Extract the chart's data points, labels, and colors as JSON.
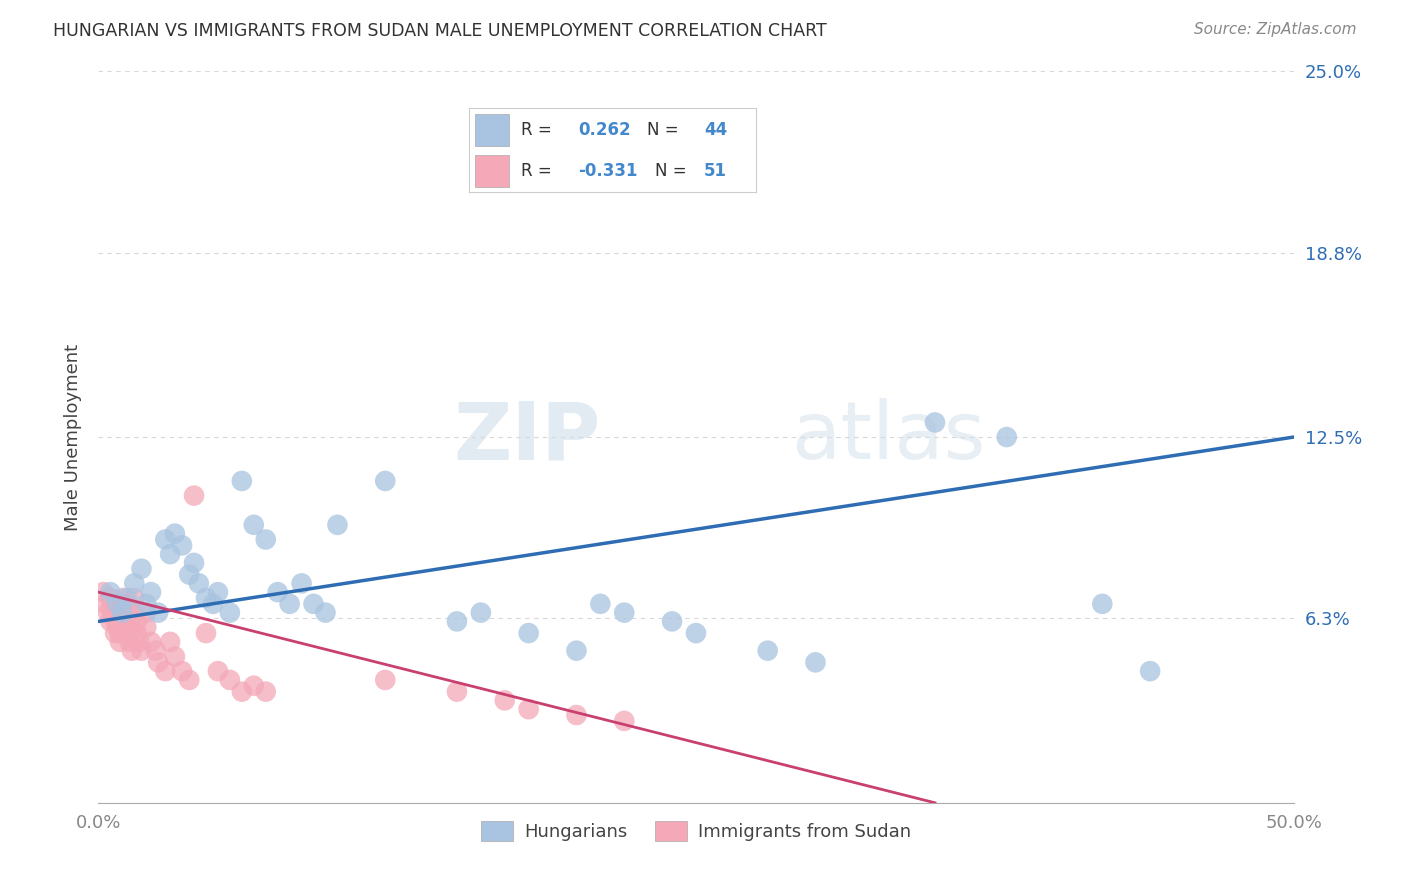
{
  "title": "HUNGARIAN VS IMMIGRANTS FROM SUDAN MALE UNEMPLOYMENT CORRELATION CHART",
  "source": "Source: ZipAtlas.com",
  "ylabel": "Male Unemployment",
  "xlim": [
    0.0,
    0.5
  ],
  "ylim": [
    0.0,
    0.25
  ],
  "yticks": [
    0.0,
    0.063,
    0.125,
    0.188,
    0.25
  ],
  "ytick_labels_right": [
    "",
    "6.3%",
    "12.5%",
    "18.8%",
    "25.0%"
  ],
  "xticks": [
    0.0,
    0.1,
    0.2,
    0.3,
    0.4,
    0.5
  ],
  "xtick_labels": [
    "0.0%",
    "",
    "",
    "",
    "",
    "50.0%"
  ],
  "blue_color": "#a8c4e0",
  "pink_color": "#f4a8b8",
  "blue_line_color": "#2e6db4",
  "pink_line_color": "#c94070",
  "legend_r_color": "#4488cc",
  "blue_scatter": [
    [
      0.005,
      0.072
    ],
    [
      0.008,
      0.068
    ],
    [
      0.01,
      0.065
    ],
    [
      0.012,
      0.07
    ],
    [
      0.015,
      0.075
    ],
    [
      0.018,
      0.08
    ],
    [
      0.02,
      0.068
    ],
    [
      0.022,
      0.072
    ],
    [
      0.025,
      0.065
    ],
    [
      0.028,
      0.09
    ],
    [
      0.03,
      0.085
    ],
    [
      0.032,
      0.092
    ],
    [
      0.035,
      0.088
    ],
    [
      0.038,
      0.078
    ],
    [
      0.04,
      0.082
    ],
    [
      0.042,
      0.075
    ],
    [
      0.045,
      0.07
    ],
    [
      0.048,
      0.068
    ],
    [
      0.05,
      0.072
    ],
    [
      0.055,
      0.065
    ],
    [
      0.06,
      0.11
    ],
    [
      0.065,
      0.095
    ],
    [
      0.07,
      0.09
    ],
    [
      0.075,
      0.072
    ],
    [
      0.08,
      0.068
    ],
    [
      0.085,
      0.075
    ],
    [
      0.09,
      0.068
    ],
    [
      0.095,
      0.065
    ],
    [
      0.1,
      0.095
    ],
    [
      0.12,
      0.11
    ],
    [
      0.15,
      0.062
    ],
    [
      0.16,
      0.065
    ],
    [
      0.18,
      0.058
    ],
    [
      0.2,
      0.052
    ],
    [
      0.21,
      0.068
    ],
    [
      0.22,
      0.065
    ],
    [
      0.24,
      0.062
    ],
    [
      0.25,
      0.058
    ],
    [
      0.28,
      0.052
    ],
    [
      0.3,
      0.048
    ],
    [
      0.35,
      0.13
    ],
    [
      0.38,
      0.125
    ],
    [
      0.42,
      0.068
    ],
    [
      0.44,
      0.045
    ]
  ],
  "pink_scatter": [
    [
      0.002,
      0.072
    ],
    [
      0.003,
      0.068
    ],
    [
      0.004,
      0.065
    ],
    [
      0.005,
      0.062
    ],
    [
      0.005,
      0.07
    ],
    [
      0.006,
      0.068
    ],
    [
      0.006,
      0.065
    ],
    [
      0.007,
      0.062
    ],
    [
      0.007,
      0.058
    ],
    [
      0.008,
      0.065
    ],
    [
      0.008,
      0.06
    ],
    [
      0.009,
      0.058
    ],
    [
      0.009,
      0.055
    ],
    [
      0.01,
      0.07
    ],
    [
      0.01,
      0.065
    ],
    [
      0.011,
      0.062
    ],
    [
      0.011,
      0.058
    ],
    [
      0.012,
      0.068
    ],
    [
      0.012,
      0.065
    ],
    [
      0.013,
      0.06
    ],
    [
      0.013,
      0.055
    ],
    [
      0.014,
      0.052
    ],
    [
      0.015,
      0.07
    ],
    [
      0.015,
      0.065
    ],
    [
      0.016,
      0.062
    ],
    [
      0.016,
      0.058
    ],
    [
      0.017,
      0.055
    ],
    [
      0.018,
      0.052
    ],
    [
      0.02,
      0.065
    ],
    [
      0.02,
      0.06
    ],
    [
      0.022,
      0.055
    ],
    [
      0.024,
      0.052
    ],
    [
      0.025,
      0.048
    ],
    [
      0.028,
      0.045
    ],
    [
      0.03,
      0.055
    ],
    [
      0.032,
      0.05
    ],
    [
      0.035,
      0.045
    ],
    [
      0.038,
      0.042
    ],
    [
      0.04,
      0.105
    ],
    [
      0.045,
      0.058
    ],
    [
      0.05,
      0.045
    ],
    [
      0.055,
      0.042
    ],
    [
      0.06,
      0.038
    ],
    [
      0.065,
      0.04
    ],
    [
      0.07,
      0.038
    ],
    [
      0.12,
      0.042
    ],
    [
      0.15,
      0.038
    ],
    [
      0.17,
      0.035
    ],
    [
      0.18,
      0.032
    ],
    [
      0.2,
      0.03
    ],
    [
      0.22,
      0.028
    ]
  ],
  "watermark_zip": "ZIP",
  "watermark_atlas": "atlas",
  "background_color": "#ffffff",
  "grid_color": "#d8d8d8"
}
